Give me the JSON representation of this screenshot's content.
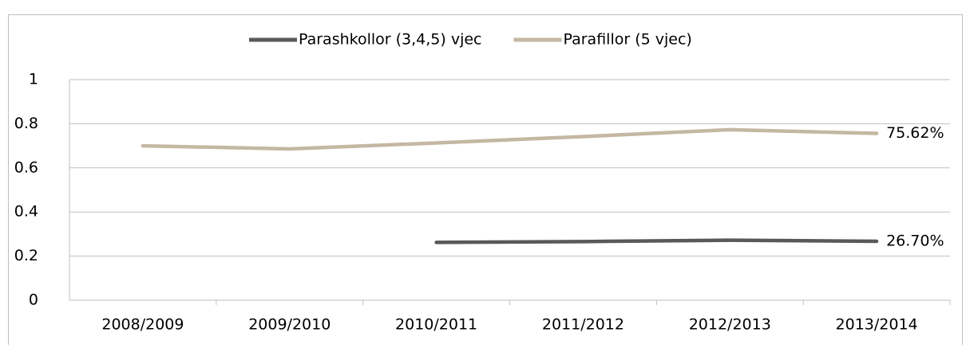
{
  "chart_data": {
    "type": "line",
    "categories": [
      "2008/2009",
      "2009/2010",
      "2010/2011",
      "2011/2012",
      "2012/2013",
      "2013/2014"
    ],
    "series": [
      {
        "name": "Parashkollor (3,4,5) vjec",
        "color": "#595959",
        "values": [
          null,
          null,
          0.262,
          0.266,
          0.272,
          0.267
        ],
        "value_labels": [
          null,
          null,
          null,
          null,
          null,
          "26.70%"
        ]
      },
      {
        "name": "Parafillor (5 vjec)",
        "color": "#c4b8a3",
        "values": [
          0.7,
          0.686,
          0.713,
          0.742,
          0.773,
          0.7562
        ],
        "value_labels": [
          null,
          null,
          null,
          null,
          null,
          "75.62%"
        ]
      }
    ],
    "ylim": [
      0,
      1
    ],
    "yticks": [
      0,
      0.2,
      0.4,
      0.6,
      0.8,
      1
    ],
    "grid": true,
    "legend": "top"
  }
}
